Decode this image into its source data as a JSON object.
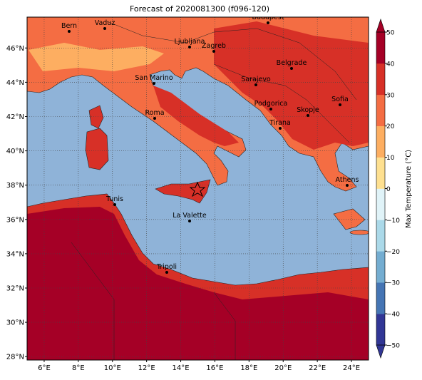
{
  "chart_data": {
    "type": "map",
    "title": "Forecast of 2020081300 (f096-120)",
    "xlim": [
      5,
      25
    ],
    "ylim": [
      27.8,
      47.8
    ],
    "xticks": [
      {
        "value": 6,
        "label": "6°E"
      },
      {
        "value": 8,
        "label": "8°E"
      },
      {
        "value": 10,
        "label": "10°E"
      },
      {
        "value": 12,
        "label": "12°E"
      },
      {
        "value": 14,
        "label": "14°E"
      },
      {
        "value": 16,
        "label": "16°E"
      },
      {
        "value": 18,
        "label": "18°E"
      },
      {
        "value": 20,
        "label": "20°E"
      },
      {
        "value": 22,
        "label": "22°E"
      },
      {
        "value": 24,
        "label": "24°E"
      }
    ],
    "yticks": [
      {
        "value": 28,
        "label": "28°N"
      },
      {
        "value": 30,
        "label": "30°N"
      },
      {
        "value": 32,
        "label": "32°N"
      },
      {
        "value": 34,
        "label": "34°N"
      },
      {
        "value": 36,
        "label": "36°N"
      },
      {
        "value": 38,
        "label": "38°N"
      },
      {
        "value": 40,
        "label": "40°N"
      },
      {
        "value": 42,
        "label": "42°N"
      },
      {
        "value": 44,
        "label": "44°N"
      },
      {
        "value": 46,
        "label": "46°N"
      }
    ],
    "grid": true,
    "cities": [
      "Bern",
      "Vaduz",
      "Budapest",
      "Ljubljana",
      "Zagreb",
      "Belgrade",
      "San Marino",
      "Sarajevo",
      "Sofia",
      "Podgorica",
      "Skopje",
      "Roma",
      "Tirana",
      "Athens",
      "Tunis",
      "La Valette",
      "Tripoli"
    ],
    "colorbar": {
      "label": "Max Temperature (°C)",
      "clim": [
        -50,
        50
      ],
      "ticks": [
        {
          "value": -50,
          "label": "−50"
        },
        {
          "value": -40,
          "label": "−40"
        },
        {
          "value": -30,
          "label": "−30"
        },
        {
          "value": -20,
          "label": "−20"
        },
        {
          "value": -10,
          "label": "−10"
        },
        0,
        10,
        20,
        30,
        40,
        50
      ],
      "colors": [
        "#313695",
        "#4575b4",
        "#74add1",
        "#abd9e9",
        "#e0f3f8",
        "#fee090",
        "#fdae61",
        "#f46d43",
        "#d73027",
        "#a50026"
      ]
    }
  }
}
